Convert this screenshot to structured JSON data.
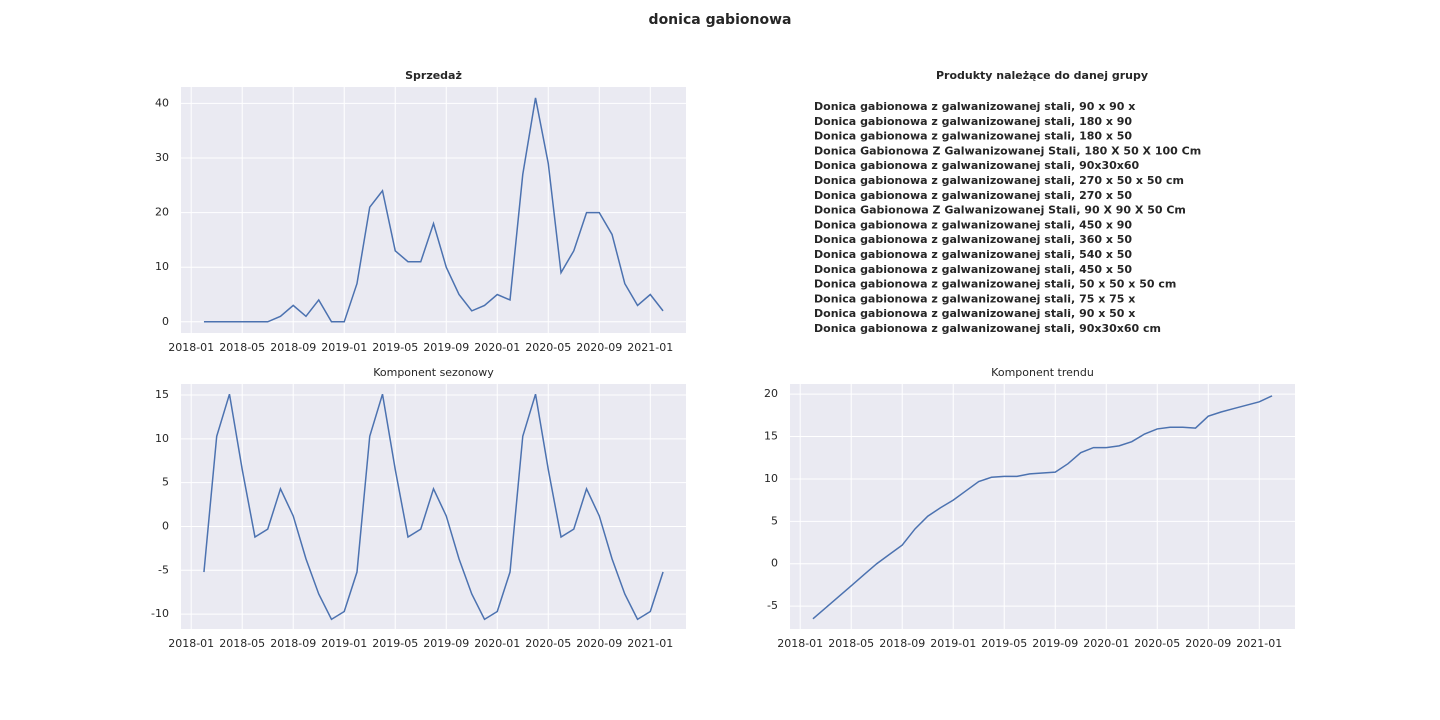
{
  "title": "donica gabionowa",
  "chart_data": [
    {
      "type": "line",
      "title": "Sprzedaż",
      "title_bold": true,
      "x": [
        "2018-02",
        "2018-03",
        "2018-04",
        "2018-05",
        "2018-06",
        "2018-07",
        "2018-08",
        "2018-09",
        "2018-10",
        "2018-11",
        "2018-12",
        "2019-01",
        "2019-02",
        "2019-03",
        "2019-04",
        "2019-05",
        "2019-06",
        "2019-07",
        "2019-08",
        "2019-09",
        "2019-10",
        "2019-11",
        "2019-12",
        "2020-01",
        "2020-02",
        "2020-03",
        "2020-04",
        "2020-05",
        "2020-06",
        "2020-07",
        "2020-08",
        "2020-09",
        "2020-10",
        "2020-11",
        "2020-12",
        "2021-01",
        "2021-02"
      ],
      "series": [
        {
          "color": "#4c72b0",
          "values": [
            0,
            0,
            0,
            0,
            0,
            0,
            1,
            3,
            1,
            4,
            0,
            0,
            7,
            21,
            24,
            13,
            11,
            11,
            18,
            10,
            5,
            2,
            3,
            5,
            4,
            27,
            41,
            29,
            9,
            13,
            20,
            20,
            16,
            7,
            3,
            5,
            2
          ]
        }
      ],
      "ylim": [
        -2.05,
        43
      ],
      "yticks": [
        0,
        10,
        20,
        30,
        40
      ],
      "xticks": [
        "2018-01",
        "2018-05",
        "2018-09",
        "2019-01",
        "2019-05",
        "2019-09",
        "2020-01",
        "2020-05",
        "2020-09",
        "2021-01"
      ],
      "grid": true
    },
    {
      "type": "line",
      "title": "Komponent sezonowy",
      "title_bold": false,
      "x": [
        "2018-02",
        "2018-03",
        "2018-04",
        "2018-05",
        "2018-06",
        "2018-07",
        "2018-08",
        "2018-09",
        "2018-10",
        "2018-11",
        "2018-12",
        "2019-01",
        "2019-02",
        "2019-03",
        "2019-04",
        "2019-05",
        "2019-06",
        "2019-07",
        "2019-08",
        "2019-09",
        "2019-10",
        "2019-11",
        "2019-12",
        "2020-01",
        "2020-02",
        "2020-03",
        "2020-04",
        "2020-05",
        "2020-06",
        "2020-07",
        "2020-08",
        "2020-09",
        "2020-10",
        "2020-11",
        "2020-12",
        "2021-01",
        "2021-02"
      ],
      "series": [
        {
          "color": "#4c72b0",
          "values": [
            -5.2,
            10.3,
            15.1,
            6.5,
            -1.2,
            -0.3,
            4.3,
            1.2,
            -3.7,
            -7.7,
            -10.6,
            -9.7,
            -5.2,
            10.3,
            15.1,
            6.5,
            -1.2,
            -0.3,
            4.3,
            1.2,
            -3.7,
            -7.7,
            -10.6,
            -9.7,
            -5.2,
            10.3,
            15.1,
            6.5,
            -1.2,
            -0.3,
            4.3,
            1.2,
            -3.7,
            -7.7,
            -10.6,
            -9.7,
            -5.2
          ]
        }
      ],
      "ylim": [
        -11.7,
        16.26
      ],
      "yticks": [
        -10,
        -5,
        0,
        5,
        10,
        15
      ],
      "xticks": [
        "2018-01",
        "2018-05",
        "2018-09",
        "2019-01",
        "2019-05",
        "2019-09",
        "2020-01",
        "2020-05",
        "2020-09",
        "2021-01"
      ],
      "grid": true
    },
    {
      "type": "line",
      "title": "Komponent trendu",
      "title_bold": false,
      "x": [
        "2018-02",
        "2018-03",
        "2018-04",
        "2018-05",
        "2018-06",
        "2018-07",
        "2018-08",
        "2018-09",
        "2018-10",
        "2018-11",
        "2018-12",
        "2019-01",
        "2019-02",
        "2019-03",
        "2019-04",
        "2019-05",
        "2019-06",
        "2019-07",
        "2019-08",
        "2019-09",
        "2019-10",
        "2019-11",
        "2019-12",
        "2020-01",
        "2020-02",
        "2020-03",
        "2020-04",
        "2020-05",
        "2020-06",
        "2020-07",
        "2020-08",
        "2020-09",
        "2020-10",
        "2020-11",
        "2020-12",
        "2021-01",
        "2021-02"
      ],
      "series": [
        {
          "color": "#4c72b0",
          "values": [
            -6.5,
            -5.2,
            -3.9,
            -2.6,
            -1.3,
            0.0,
            1.1,
            2.2,
            4.1,
            5.6,
            6.6,
            7.5,
            8.6,
            9.7,
            10.2,
            10.3,
            10.3,
            10.6,
            10.7,
            10.8,
            11.8,
            13.1,
            13.7,
            13.7,
            13.9,
            14.4,
            15.3,
            15.9,
            16.1,
            16.1,
            16.0,
            17.4,
            17.9,
            18.3,
            18.7,
            19.1,
            19.8
          ]
        }
      ],
      "ylim": [
        -7.7,
        21.2
      ],
      "yticks": [
        -5,
        0,
        5,
        10,
        15,
        20
      ],
      "xticks": [
        "2018-01",
        "2018-05",
        "2018-09",
        "2019-01",
        "2019-05",
        "2019-09",
        "2020-01",
        "2020-05",
        "2020-09",
        "2021-01"
      ],
      "grid": true
    }
  ],
  "products": {
    "title": "Produkty należące do danej grupy",
    "items": [
      "Donica gabionowa z galwanizowanej stali, 90 x 90 x",
      "Donica gabionowa z galwanizowanej stali, 180 x 90",
      "Donica gabionowa z galwanizowanej stali, 180 x 50",
      "Donica Gabionowa Z Galwanizowanej Stali, 180 X 50 X 100 Cm",
      "Donica gabionowa z galwanizowanej stali, 90x30x60",
      "Donica gabionowa z galwanizowanej stali, 270 x 50 x 50 cm",
      "Donica gabionowa z galwanizowanej stali, 270 x 50",
      "Donica Gabionowa Z Galwanizowanej Stali, 90 X 90 X 50 Cm",
      "Donica gabionowa z galwanizowanej stali, 450 x 90",
      "Donica gabionowa z galwanizowanej stali, 360 x 50",
      "Donica gabionowa z galwanizowanej stali, 540 x 50",
      "Donica gabionowa z galwanizowanej stali, 450 x 50",
      "Donica gabionowa z galwanizowanej stali, 50 x 50 x 50 cm",
      "Donica gabionowa z galwanizowanej stali, 75 x 75 x",
      "Donica gabionowa z galwanizowanej stali, 90 x 50 x",
      "Donica gabionowa z galwanizowanej stali, 90x30x60 cm"
    ]
  }
}
